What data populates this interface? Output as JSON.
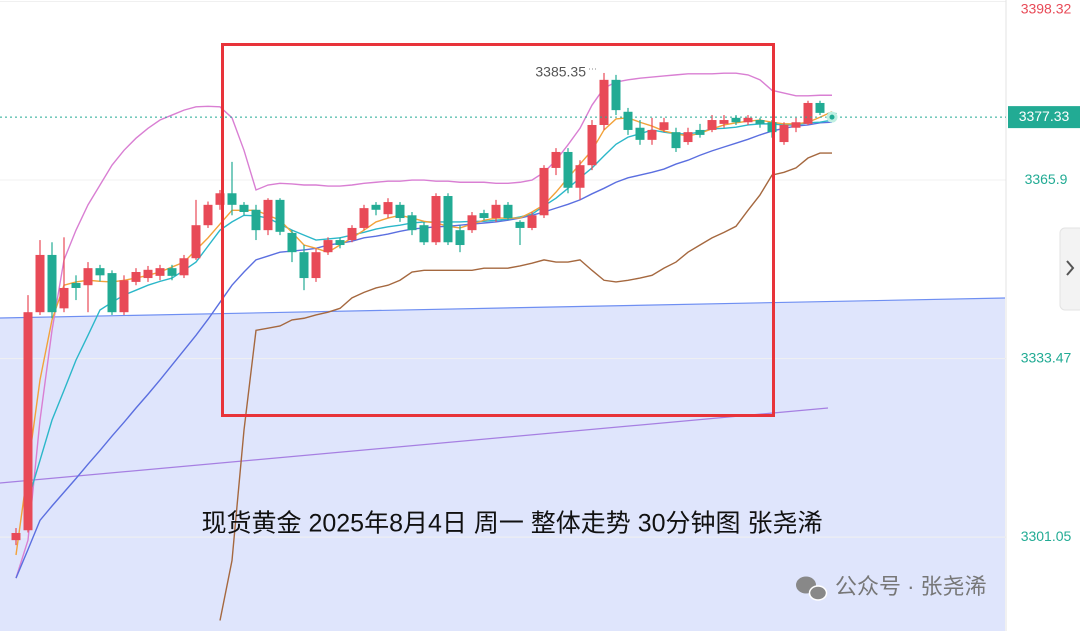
{
  "chart_data": {
    "type": "candlestick",
    "title": "现货黄金 2025年8月4日 周一 整体走势 30分钟图 张尧浠",
    "watermark": "公众号 · 张尧浠",
    "high_label": 3385.35,
    "last_price": 3377.33,
    "last_price_color": "#22ab94",
    "up_color": "#e84a57",
    "down_color": "#22ab94",
    "ylim": [
      3284,
      3398.6
    ],
    "yticks": [
      3398.32,
      3365.9,
      3333.47,
      3301.05
    ],
    "ytick_colors": [
      "#e84a57",
      "#22ab94",
      "#22ab94",
      "#22ab94"
    ],
    "grid": true,
    "open": [
      3300.5,
      3302.3,
      3341.9,
      3352.3,
      3342.6,
      3347.2,
      3346.8,
      3349.9,
      3349.0,
      3341.9,
      3347.4,
      3348.1,
      3348.5,
      3349.9,
      3348.6,
      3351.7,
      3357.7,
      3361.4,
      3363.5,
      3361.4,
      3360.5,
      3356.8,
      3362.3,
      3356.3,
      3352.8,
      3348.1,
      3352.8,
      3355.0,
      3355.0,
      3357.2,
      3361.4,
      3359.7,
      3361.4,
      3359.5,
      3357.7,
      3354.6,
      3363.0,
      3356.8,
      3356.8,
      3359.9,
      3359.0,
      3361.4,
      3358.3,
      3357.2,
      3359.5,
      3368.1,
      3371.0,
      3364.5,
      3368.6,
      3375.9,
      3384.1,
      3378.3,
      3375.4,
      3373.2,
      3375.0,
      3374.6,
      3372.8,
      3375.0,
      3375.0,
      3376.1,
      3377.2,
      3376.4,
      3376.8,
      3376.4,
      3372.8,
      3375.4,
      3376.1,
      3379.9,
      3378.1
    ],
    "high": [
      3302.7,
      3345.0,
      3355.0,
      3354.6,
      3355.5,
      3348.6,
      3351.0,
      3350.5,
      3349.5,
      3348.6,
      3349.9,
      3350.3,
      3350.5,
      3350.5,
      3352.3,
      3362.3,
      3362.0,
      3364.1,
      3369.2,
      3361.9,
      3361.4,
      3362.6,
      3362.6,
      3356.8,
      3354.1,
      3353.5,
      3355.5,
      3355.5,
      3357.7,
      3361.4,
      3361.9,
      3362.6,
      3361.9,
      3360.1,
      3358.3,
      3363.5,
      3363.5,
      3357.7,
      3360.1,
      3360.5,
      3362.3,
      3361.9,
      3358.6,
      3360.1,
      3368.6,
      3371.7,
      3371.7,
      3369.5,
      3376.8,
      3385.35,
      3385.0,
      3379.0,
      3376.8,
      3377.2,
      3377.2,
      3375.4,
      3375.4,
      3376.1,
      3377.7,
      3377.7,
      3377.7,
      3377.7,
      3377.2,
      3376.8,
      3376.4,
      3377.2,
      3380.3,
      3380.3,
      3378.3
    ],
    "low": [
      3299.6,
      3301.9,
      3341.4,
      3340.8,
      3341.9,
      3344.1,
      3341.9,
      3347.5,
      3341.4,
      3341.4,
      3346.8,
      3347.4,
      3347.7,
      3347.7,
      3348.1,
      3351.4,
      3357.2,
      3360.5,
      3359.5,
      3359.5,
      3355.0,
      3355.9,
      3355.9,
      3351.0,
      3345.9,
      3347.4,
      3352.3,
      3353.5,
      3354.6,
      3356.8,
      3359.5,
      3359.0,
      3358.3,
      3355.9,
      3354.1,
      3354.1,
      3354.1,
      3352.8,
      3356.3,
      3358.6,
      3358.3,
      3358.6,
      3354.1,
      3356.8,
      3359.0,
      3366.8,
      3363.5,
      3362.3,
      3367.7,
      3375.0,
      3377.7,
      3374.1,
      3372.3,
      3372.3,
      3374.6,
      3371.0,
      3372.3,
      3373.6,
      3374.6,
      3375.4,
      3375.9,
      3375.9,
      3375.4,
      3373.6,
      3372.3,
      3374.6,
      3375.9,
      3377.7,
      3376.8
    ],
    "close": [
      3301.8,
      3341.9,
      3352.3,
      3341.9,
      3346.3,
      3346.3,
      3349.9,
      3348.6,
      3341.9,
      3347.7,
      3349.2,
      3349.6,
      3349.9,
      3348.5,
      3351.7,
      3357.7,
      3361.4,
      3363.5,
      3361.4,
      3360.1,
      3356.8,
      3362.3,
      3356.5,
      3352.8,
      3348.1,
      3352.8,
      3355.0,
      3354.1,
      3357.2,
      3360.8,
      3360.5,
      3361.9,
      3359.0,
      3356.8,
      3354.6,
      3363.0,
      3354.6,
      3354.1,
      3359.5,
      3359.0,
      3361.4,
      3359.0,
      3357.2,
      3359.5,
      3368.1,
      3371.0,
      3364.5,
      3368.6,
      3375.9,
      3384.1,
      3378.6,
      3375.0,
      3373.2,
      3375.0,
      3376.4,
      3371.7,
      3374.6,
      3374.1,
      3376.8,
      3376.8,
      3376.4,
      3377.2,
      3376.1,
      3374.6,
      3375.9,
      3376.4,
      3379.9,
      3378.1,
      3377.33
    ],
    "overlays": [
      {
        "color": "#d97fd3",
        "values": [
          3293.6,
          3300.5,
          3322.3,
          3338.6,
          3351.4,
          3356.8,
          3361.4,
          3365.0,
          3368.6,
          3371.3,
          3373.5,
          3375.3,
          3376.8,
          3377.7,
          3378.6,
          3379.2,
          3379.3,
          3379.2,
          3377.2,
          3371.3,
          3364.1,
          3365.0,
          3365.3,
          3365.2,
          3365.0,
          3365.0,
          3364.8,
          3364.8,
          3365.0,
          3365.3,
          3365.5,
          3365.7,
          3365.7,
          3365.9,
          3365.9,
          3365.7,
          3365.7,
          3365.5,
          3365.5,
          3365.5,
          3365.3,
          3365.3,
          3365.5,
          3365.9,
          3367.3,
          3369.5,
          3372.3,
          3375.3,
          3379.5,
          3382.6,
          3383.7,
          3384.1,
          3384.4,
          3384.6,
          3384.8,
          3385.0,
          3385.2,
          3385.2,
          3385.2,
          3385.3,
          3385.3,
          3385.0,
          3384.1,
          3382.2,
          3381.7,
          3381.2,
          3381.2,
          3381.3,
          3381.3
        ]
      },
      {
        "color": "#a5683f",
        "values": [
          null,
          null,
          null,
          null,
          null,
          null,
          null,
          null,
          null,
          null,
          null,
          null,
          null,
          null,
          null,
          null,
          null,
          3285.9,
          3296.8,
          3320.5,
          3338.6,
          3339.0,
          3339.4,
          3340.5,
          3340.8,
          3341.4,
          3341.9,
          3342.6,
          3344.5,
          3345.5,
          3346.3,
          3346.8,
          3347.7,
          3349.2,
          3349.5,
          3349.5,
          3349.5,
          3349.5,
          3349.5,
          3349.9,
          3349.9,
          3349.9,
          3350.3,
          3350.8,
          3351.4,
          3351.0,
          3351.0,
          3351.4,
          3349.5,
          3347.7,
          3347.4,
          3347.7,
          3348.1,
          3348.6,
          3349.9,
          3351.0,
          3352.8,
          3354.1,
          3355.4,
          3356.4,
          3357.5,
          3360.4,
          3363.2,
          3366.8,
          3367.3,
          3368.1,
          3369.9,
          3370.8,
          3370.8
        ]
      },
      {
        "color": "#5b6fe0",
        "values": [
          3293.6,
          3298.8,
          3304.1,
          3306.7,
          3309.2,
          3311.7,
          3314.3,
          3316.8,
          3319.4,
          3321.9,
          3324.5,
          3327.0,
          3329.6,
          3332.3,
          3335.0,
          3337.7,
          3340.6,
          3343.7,
          3346.8,
          3349.2,
          3351.4,
          3352.1,
          3352.8,
          3353.0,
          3353.2,
          3353.5,
          3354.1,
          3354.4,
          3354.8,
          3355.4,
          3355.7,
          3356.1,
          3356.6,
          3357.0,
          3357.2,
          3357.4,
          3357.5,
          3357.7,
          3357.9,
          3358.1,
          3358.3,
          3358.6,
          3359.0,
          3359.5,
          3360.1,
          3360.8,
          3361.5,
          3362.3,
          3363.4,
          3364.4,
          3365.5,
          3366.3,
          3366.8,
          3367.3,
          3367.9,
          3368.8,
          3369.5,
          3370.4,
          3371.2,
          3371.9,
          3372.6,
          3373.3,
          3374.1,
          3374.8,
          3375.3,
          3375.7,
          3375.9,
          3376.3,
          3376.4
        ]
      },
      {
        "color": "#2bb7c9",
        "values": [
          null,
          3307.7,
          3315.0,
          3322.3,
          3327.7,
          3333.2,
          3337.7,
          3342.3,
          3343.7,
          3345.0,
          3345.9,
          3346.8,
          3347.5,
          3348.1,
          3349.5,
          3351.0,
          3353.9,
          3356.8,
          3358.3,
          3359.5,
          3359.4,
          3359.0,
          3357.9,
          3356.8,
          3355.9,
          3355.0,
          3355.2,
          3355.4,
          3355.9,
          3356.4,
          3357.0,
          3357.4,
          3357.7,
          3358.1,
          3358.3,
          3358.3,
          3358.3,
          3358.3,
          3358.4,
          3358.4,
          3358.6,
          3358.8,
          3359.2,
          3359.7,
          3361.2,
          3362.6,
          3364.4,
          3366.3,
          3368.1,
          3370.3,
          3372.4,
          3373.7,
          3374.3,
          3375.0,
          3374.6,
          3374.3,
          3374.3,
          3374.6,
          3375.2,
          3375.3,
          3375.5,
          3375.9,
          3376.1,
          3376.1,
          3375.9,
          3375.9,
          3376.3,
          3376.4,
          3376.8
        ]
      },
      {
        "color": "#f2a23a",
        "values": [
          3297.8,
          3313.6,
          3329.6,
          3340.5,
          3346.8,
          3347.4,
          3347.7,
          3347.5,
          3347.4,
          3347.7,
          3348.1,
          3348.6,
          3349.2,
          3350.1,
          3351.0,
          3353.2,
          3355.4,
          3357.9,
          3360.4,
          3360.4,
          3360.4,
          3359.5,
          3358.6,
          3356.4,
          3354.1,
          3353.5,
          3352.8,
          3354.1,
          3355.4,
          3356.8,
          3358.3,
          3359.0,
          3359.5,
          3359.0,
          3358.4,
          3358.1,
          3357.5,
          3357.2,
          3357.9,
          3358.6,
          3359.0,
          3359.0,
          3359.0,
          3360.1,
          3361.4,
          3363.7,
          3366.3,
          3368.8,
          3371.3,
          3375.0,
          3377.0,
          3377.2,
          3376.4,
          3375.7,
          3374.8,
          3374.3,
          3373.9,
          3374.4,
          3375.2,
          3375.9,
          3376.3,
          3376.6,
          3376.8,
          3376.4,
          3376.1,
          3376.1,
          3376.4,
          3377.3,
          3378.3
        ]
      }
    ]
  }
}
